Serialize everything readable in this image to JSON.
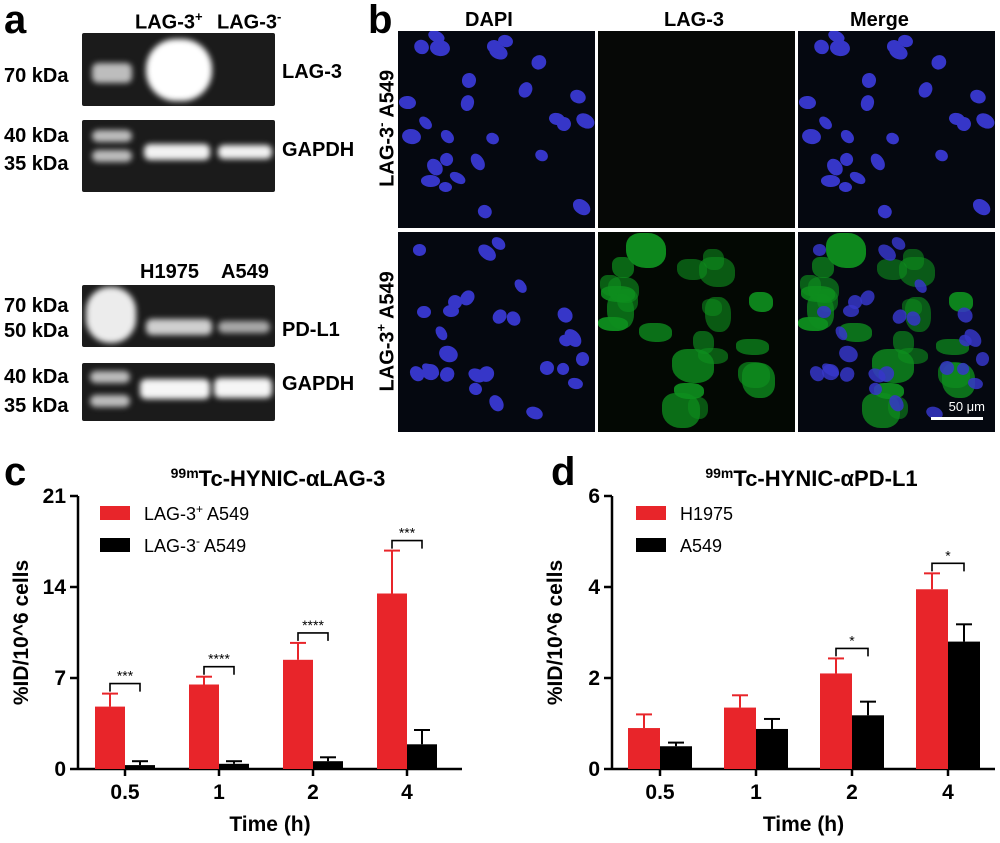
{
  "panel_a": {
    "letter": "a",
    "blot1": {
      "lanes": [
        "LAG-3",
        "LAG-3"
      ],
      "lane_sup": [
        "+",
        "-"
      ],
      "marker": "70 kDa",
      "protein": "LAG-3"
    },
    "blot2": {
      "markers": [
        "40 kDa",
        "35 kDa"
      ],
      "protein": "GAPDH"
    },
    "blot3": {
      "lanes": [
        "H1975",
        "A549"
      ],
      "markers": [
        "70 kDa",
        "50 kDa"
      ],
      "protein": "PD-L1"
    },
    "blot4": {
      "markers": [
        "40 kDa",
        "35 kDa"
      ],
      "protein": "GAPDH"
    }
  },
  "panel_b": {
    "letter": "b",
    "columns": [
      "DAPI",
      "LAG-3",
      "Merge"
    ],
    "row1": {
      "prefix": "LAG-3",
      "sup": "-",
      "suffix": " A549"
    },
    "row2": {
      "prefix": "LAG-3",
      "sup": "+",
      "suffix": " A549"
    },
    "scale_bar": "50 μm",
    "colors": {
      "dapi": "#3636c8",
      "lag3": "#0e8e1e"
    }
  },
  "chart_data": [
    {
      "type": "bar",
      "letter": "c",
      "title_sup": "99m",
      "title_main": "Tc-HYNIC-αLAG-3",
      "xlabel": "Time (h)",
      "ylabel": "%ID/10^6 cells",
      "categories": [
        "0.5",
        "1",
        "2",
        "4"
      ],
      "ylim": [
        0,
        21
      ],
      "yticks": [
        "0",
        "7",
        "14",
        "21"
      ],
      "series": [
        {
          "name_prefix": "LAG-3",
          "name_sup": "+",
          "name_suffix": " A549",
          "color": "#e8252a",
          "values": [
            4.8,
            6.5,
            8.4,
            13.5
          ],
          "errors": [
            1.0,
            0.6,
            1.3,
            3.3
          ]
        },
        {
          "name_prefix": "LAG-3",
          "name_sup": "-",
          "name_suffix": " A549",
          "color": "#000000",
          "values": [
            0.3,
            0.4,
            0.6,
            1.9
          ],
          "errors": [
            0.3,
            0.2,
            0.3,
            1.1
          ]
        }
      ],
      "significance": [
        "***",
        "****",
        "****",
        "***"
      ]
    },
    {
      "type": "bar",
      "letter": "d",
      "title_sup": "99m",
      "title_main": "Tc-HYNIC-αPD-L1",
      "xlabel": "Time (h)",
      "ylabel": "%ID/10^6 cells",
      "categories": [
        "0.5",
        "1",
        "2",
        "4"
      ],
      "ylim": [
        0,
        6
      ],
      "yticks": [
        "0",
        "2",
        "4",
        "6"
      ],
      "series": [
        {
          "name": "H1975",
          "color": "#e8252a",
          "values": [
            0.9,
            1.35,
            2.1,
            3.95
          ],
          "errors": [
            0.3,
            0.27,
            0.33,
            0.35
          ]
        },
        {
          "name": "A549",
          "color": "#000000",
          "values": [
            0.5,
            0.88,
            1.18,
            2.8
          ],
          "errors": [
            0.08,
            0.22,
            0.3,
            0.38
          ]
        }
      ],
      "significance": [
        "",
        "",
        "*",
        "*"
      ]
    }
  ]
}
